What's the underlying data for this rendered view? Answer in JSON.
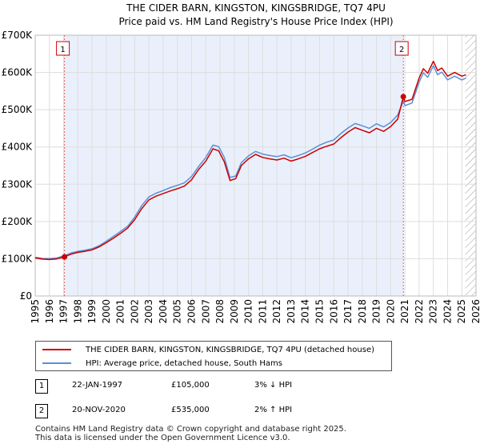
{
  "chart_data": {
    "type": "line",
    "title": "THE CIDER BARN, KINGSTON, KINGSBRIDGE, TQ7 4PU",
    "subtitle": "Price paid vs. HM Land Registry's House Price Index (HPI)",
    "ylim": [
      0,
      700000
    ],
    "xlim": [
      1995,
      2026
    ],
    "y_ticks": [
      0,
      100000,
      200000,
      300000,
      400000,
      500000,
      600000,
      700000
    ],
    "y_tick_labels": [
      "£0",
      "£100K",
      "£200K",
      "£300K",
      "£400K",
      "£500K",
      "£600K",
      "£700K"
    ],
    "x_ticks": [
      1995,
      1996,
      1997,
      1998,
      1999,
      2000,
      2001,
      2002,
      2003,
      2004,
      2005,
      2006,
      2007,
      2008,
      2009,
      2010,
      2011,
      2012,
      2013,
      2014,
      2015,
      2016,
      2017,
      2018,
      2019,
      2020,
      2021,
      2022,
      2023,
      2024,
      2025,
      2026
    ],
    "forecast_start": 2025.25,
    "series": [
      {
        "name": "THE CIDER BARN, KINGSTON, KINGSBRIDGE, TQ7 4PU (detached house)",
        "color": "#cc0000",
        "x": [
          1995.0,
          1995.5,
          1996.0,
          1996.5,
          1997.06,
          1997.5,
          1998.0,
          1998.5,
          1999.0,
          1999.5,
          2000.0,
          2000.5,
          2001.0,
          2001.5,
          2002.0,
          2002.5,
          2003.0,
          2003.5,
          2004.0,
          2004.5,
          2005.0,
          2005.5,
          2006.0,
          2006.5,
          2007.0,
          2007.5,
          2007.9,
          2008.3,
          2008.7,
          2009.1,
          2009.5,
          2010.0,
          2010.5,
          2011.0,
          2011.5,
          2012.0,
          2012.5,
          2013.0,
          2013.5,
          2014.0,
          2014.5,
          2015.0,
          2015.5,
          2016.0,
          2016.5,
          2017.0,
          2017.5,
          2018.0,
          2018.5,
          2019.0,
          2019.5,
          2020.0,
          2020.5,
          2020.89,
          2021.0,
          2021.5,
          2022.0,
          2022.3,
          2022.6,
          2023.0,
          2023.3,
          2023.6,
          2024.0,
          2024.5,
          2025.0,
          2025.3
        ],
        "values": [
          102000,
          99000,
          98000,
          99500,
          105000,
          112000,
          117000,
          120000,
          124000,
          132000,
          143000,
          155000,
          168000,
          182000,
          205000,
          235000,
          258000,
          268000,
          275000,
          282000,
          288000,
          295000,
          312000,
          340000,
          362000,
          395000,
          390000,
          360000,
          310000,
          315000,
          350000,
          368000,
          380000,
          372000,
          368000,
          365000,
          370000,
          362000,
          368000,
          375000,
          385000,
          395000,
          402000,
          408000,
          425000,
          440000,
          452000,
          445000,
          438000,
          450000,
          442000,
          455000,
          475000,
          535000,
          522000,
          528000,
          585000,
          610000,
          598000,
          630000,
          605000,
          612000,
          590000,
          600000,
          590000,
          594000
        ]
      },
      {
        "name": "HPI: Average price, detached house, South Hams",
        "color": "#5b8fd6",
        "x": [
          1995.0,
          1995.5,
          1996.0,
          1996.5,
          1997.06,
          1997.5,
          1998.0,
          1998.5,
          1999.0,
          1999.5,
          2000.0,
          2000.5,
          2001.0,
          2001.5,
          2002.0,
          2002.5,
          2003.0,
          2003.5,
          2004.0,
          2004.5,
          2005.0,
          2005.5,
          2006.0,
          2006.5,
          2007.0,
          2007.5,
          2007.9,
          2008.3,
          2008.7,
          2009.1,
          2009.5,
          2010.0,
          2010.5,
          2011.0,
          2011.5,
          2012.0,
          2012.5,
          2013.0,
          2013.5,
          2014.0,
          2014.5,
          2015.0,
          2015.5,
          2016.0,
          2016.5,
          2017.0,
          2017.5,
          2018.0,
          2018.5,
          2019.0,
          2019.5,
          2020.0,
          2020.5,
          2020.89,
          2021.0,
          2021.5,
          2022.0,
          2022.3,
          2022.6,
          2023.0,
          2023.3,
          2023.6,
          2024.0,
          2024.5,
          2025.0,
          2025.3
        ],
        "values": [
          104000,
          101000,
          100500,
          102000,
          108000,
          115000,
          120000,
          123000,
          127000,
          135000,
          147000,
          160000,
          173000,
          187000,
          212000,
          243000,
          266000,
          276000,
          283000,
          291000,
          297000,
          304000,
          321000,
          348000,
          372000,
          405000,
          401000,
          372000,
          318000,
          322000,
          358000,
          376000,
          388000,
          381000,
          377000,
          374000,
          379000,
          371000,
          377000,
          384000,
          394000,
          405000,
          413000,
          419000,
          436000,
          451000,
          463000,
          457000,
          450000,
          462000,
          454000,
          466000,
          486000,
          524000,
          511000,
          518000,
          574000,
          599000,
          587000,
          618000,
          594000,
          601000,
          580000,
          590000,
          580000,
          585000
        ]
      }
    ],
    "annotations": [
      {
        "label": "1",
        "x": 1997.06,
        "y": 105000
      },
      {
        "label": "2",
        "x": 2020.89,
        "y": 535000
      }
    ]
  },
  "legend": {
    "property_label": "THE CIDER BARN, KINGSTON, KINGSBRIDGE, TQ7 4PU (detached house)",
    "hpi_label": "HPI: Average price, detached house, South Hams"
  },
  "transactions": [
    {
      "num": "1",
      "date": "22-JAN-1997",
      "price": "£105,000",
      "hpi": "3% ↓ HPI"
    },
    {
      "num": "2",
      "date": "20-NOV-2020",
      "price": "£535,000",
      "hpi": "2% ↑ HPI"
    }
  ],
  "footer": {
    "line1": "Contains HM Land Registry data © Crown copyright and database right 2025.",
    "line2": "This data is licensed under the Open Government Licence v3.0."
  }
}
